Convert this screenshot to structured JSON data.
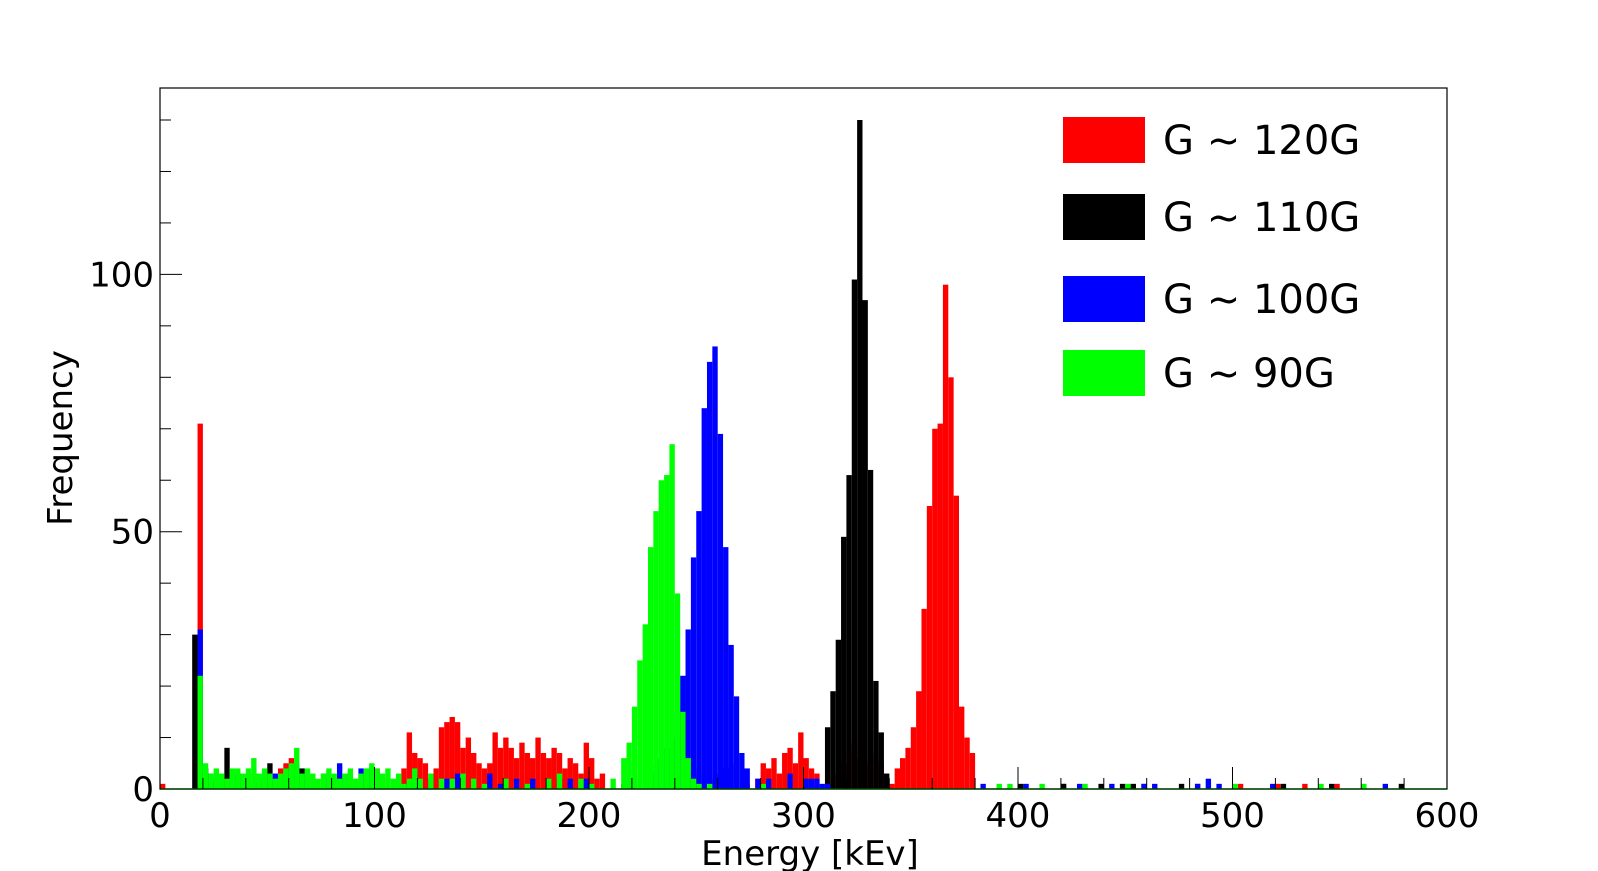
{
  "chart_data": {
    "type": "bar",
    "xlabel": "Energy [kEv]",
    "ylabel": "Frequency",
    "xlim": [
      0,
      600
    ],
    "ylim": [
      0,
      130
    ],
    "xticks": [
      0,
      100,
      200,
      300,
      400,
      500,
      600
    ],
    "yticks": [
      0,
      50,
      100
    ],
    "xtick_labels": [
      "0",
      "100",
      "200",
      "300",
      "400",
      "500",
      "600"
    ],
    "ytick_labels": [
      "0",
      "50",
      "100"
    ],
    "grid": false,
    "legend_position": "top-right",
    "bin_width": 2.5,
    "series": [
      {
        "name": "G ~ 120G",
        "color": "#ff0000",
        "points": [
          [
            0,
            1
          ],
          [
            17.5,
            71
          ],
          [
            20,
            4
          ],
          [
            27.5,
            2
          ],
          [
            40,
            3
          ],
          [
            45,
            2
          ],
          [
            55,
            4
          ],
          [
            57.5,
            5
          ],
          [
            60,
            6
          ],
          [
            62.5,
            5
          ],
          [
            95,
            3
          ],
          [
            100,
            4
          ],
          [
            102.5,
            2
          ],
          [
            112.5,
            4
          ],
          [
            115,
            11
          ],
          [
            117.5,
            7
          ],
          [
            120,
            6
          ],
          [
            122.5,
            5
          ],
          [
            125,
            2
          ],
          [
            127.5,
            4
          ],
          [
            130,
            12
          ],
          [
            132.5,
            13
          ],
          [
            135,
            14
          ],
          [
            137.5,
            13
          ],
          [
            140,
            8
          ],
          [
            142.5,
            10
          ],
          [
            145,
            7
          ],
          [
            147.5,
            5
          ],
          [
            150,
            4
          ],
          [
            152.5,
            5
          ],
          [
            155,
            11
          ],
          [
            157.5,
            8
          ],
          [
            160,
            10
          ],
          [
            162.5,
            8
          ],
          [
            165,
            6
          ],
          [
            167.5,
            9
          ],
          [
            170,
            7
          ],
          [
            172.5,
            6
          ],
          [
            175,
            10
          ],
          [
            177.5,
            7
          ],
          [
            180,
            6
          ],
          [
            182.5,
            8
          ],
          [
            185,
            7
          ],
          [
            187.5,
            4
          ],
          [
            190,
            6
          ],
          [
            192.5,
            5
          ],
          [
            195,
            3
          ],
          [
            197.5,
            9
          ],
          [
            200,
            6
          ],
          [
            202.5,
            2
          ],
          [
            205,
            3
          ],
          [
            247.5,
            4
          ],
          [
            250,
            3
          ],
          [
            255,
            2
          ],
          [
            272.5,
            1
          ],
          [
            277.5,
            2
          ],
          [
            280,
            5
          ],
          [
            282.5,
            4
          ],
          [
            285,
            6
          ],
          [
            287.5,
            3
          ],
          [
            290,
            7
          ],
          [
            292.5,
            8
          ],
          [
            295,
            5
          ],
          [
            297.5,
            11
          ],
          [
            300,
            6
          ],
          [
            302.5,
            4
          ],
          [
            305,
            3
          ],
          [
            315,
            3
          ],
          [
            317.5,
            5
          ],
          [
            320,
            7
          ],
          [
            322.5,
            9
          ],
          [
            325,
            6
          ],
          [
            327.5,
            5
          ],
          [
            330,
            4
          ],
          [
            332.5,
            7
          ],
          [
            335,
            5
          ],
          [
            337.5,
            3
          ],
          [
            340,
            1
          ],
          [
            342.5,
            4
          ],
          [
            345,
            6
          ],
          [
            347.5,
            8
          ],
          [
            350,
            12
          ],
          [
            352.5,
            19
          ],
          [
            355,
            35
          ],
          [
            357.5,
            55
          ],
          [
            360,
            70
          ],
          [
            362.5,
            71
          ],
          [
            365,
            98
          ],
          [
            367.5,
            80
          ],
          [
            370,
            57
          ],
          [
            372.5,
            16
          ],
          [
            375,
            10
          ],
          [
            377.5,
            7
          ],
          [
            420,
            1
          ],
          [
            457.5,
            1
          ],
          [
            482.5,
            1
          ],
          [
            502.5,
            1
          ],
          [
            520,
            1
          ],
          [
            532.5,
            1
          ],
          [
            547.5,
            1
          ]
        ]
      },
      {
        "name": "G ~ 110G",
        "color": "#000000",
        "points": [
          [
            15,
            30
          ],
          [
            17.5,
            4
          ],
          [
            22.5,
            3
          ],
          [
            30,
            8
          ],
          [
            37.5,
            2
          ],
          [
            50,
            5
          ],
          [
            65,
            4
          ],
          [
            75,
            3
          ],
          [
            115,
            1
          ],
          [
            185,
            2
          ],
          [
            215,
            1
          ],
          [
            260,
            3
          ],
          [
            262.5,
            4
          ],
          [
            265,
            5
          ],
          [
            310,
            12
          ],
          [
            312.5,
            19
          ],
          [
            315,
            29
          ],
          [
            317.5,
            49
          ],
          [
            320,
            61
          ],
          [
            322.5,
            99
          ],
          [
            325,
            130
          ],
          [
            327.5,
            95
          ],
          [
            330,
            62
          ],
          [
            332.5,
            21
          ],
          [
            335,
            11
          ],
          [
            337.5,
            3
          ],
          [
            400,
            1
          ],
          [
            420,
            1
          ],
          [
            437.5,
            1
          ],
          [
            447.5,
            1
          ],
          [
            452.5,
            1
          ],
          [
            475,
            1
          ],
          [
            522.5,
            1
          ],
          [
            545,
            1
          ],
          [
            577.5,
            1
          ]
        ]
      },
      {
        "name": "G ~ 100G",
        "color": "#0000ff",
        "points": [
          [
            17.5,
            31
          ],
          [
            20,
            4
          ],
          [
            25,
            2
          ],
          [
            35,
            3
          ],
          [
            47.5,
            3
          ],
          [
            52.5,
            3
          ],
          [
            60,
            4
          ],
          [
            62.5,
            5
          ],
          [
            67.5,
            3
          ],
          [
            77.5,
            2
          ],
          [
            82.5,
            5
          ],
          [
            87.5,
            3
          ],
          [
            92.5,
            4
          ],
          [
            95,
            3
          ],
          [
            97.5,
            4
          ],
          [
            117.5,
            3
          ],
          [
            125,
            2
          ],
          [
            132.5,
            2
          ],
          [
            137.5,
            3
          ],
          [
            152.5,
            3
          ],
          [
            157.5,
            1
          ],
          [
            165,
            2
          ],
          [
            172.5,
            2
          ],
          [
            190,
            2
          ],
          [
            197.5,
            2
          ],
          [
            227.5,
            3
          ],
          [
            230,
            5
          ],
          [
            232.5,
            6
          ],
          [
            235,
            8
          ],
          [
            237.5,
            10
          ],
          [
            240,
            15
          ],
          [
            242.5,
            22
          ],
          [
            245,
            31
          ],
          [
            247.5,
            45
          ],
          [
            250,
            54
          ],
          [
            252.5,
            74
          ],
          [
            255,
            83
          ],
          [
            257.5,
            86
          ],
          [
            260,
            69
          ],
          [
            262.5,
            47
          ],
          [
            265,
            28
          ],
          [
            267.5,
            18
          ],
          [
            270,
            7
          ],
          [
            272.5,
            4
          ],
          [
            277.5,
            2
          ],
          [
            282.5,
            2
          ],
          [
            292.5,
            3
          ],
          [
            300,
            2
          ],
          [
            302.5,
            2
          ],
          [
            305,
            2
          ],
          [
            307.5,
            1
          ],
          [
            310,
            1
          ],
          [
            382.5,
            1
          ],
          [
            402.5,
            1
          ],
          [
            427.5,
            1
          ],
          [
            442.5,
            1
          ],
          [
            457.5,
            1
          ],
          [
            462.5,
            1
          ],
          [
            482.5,
            1
          ],
          [
            487.5,
            2
          ],
          [
            492.5,
            1
          ],
          [
            517.5,
            1
          ],
          [
            570,
            1
          ]
        ]
      },
      {
        "name": "G ~ 90G",
        "color": "#00ff00",
        "points": [
          [
            17.5,
            22
          ],
          [
            20,
            5
          ],
          [
            22.5,
            3
          ],
          [
            25,
            4
          ],
          [
            27.5,
            3
          ],
          [
            30,
            2
          ],
          [
            32.5,
            4
          ],
          [
            35,
            4
          ],
          [
            37.5,
            3
          ],
          [
            40,
            4
          ],
          [
            42.5,
            6
          ],
          [
            45,
            3
          ],
          [
            47.5,
            4
          ],
          [
            50,
            3
          ],
          [
            52.5,
            2
          ],
          [
            55,
            3
          ],
          [
            57.5,
            4
          ],
          [
            60,
            5
          ],
          [
            62.5,
            8
          ],
          [
            65,
            3
          ],
          [
            67.5,
            4
          ],
          [
            70,
            3
          ],
          [
            72.5,
            2
          ],
          [
            75,
            3
          ],
          [
            77.5,
            4
          ],
          [
            80,
            3
          ],
          [
            82.5,
            2
          ],
          [
            85,
            3
          ],
          [
            87.5,
            4
          ],
          [
            90,
            2
          ],
          [
            92.5,
            3
          ],
          [
            95,
            4
          ],
          [
            97.5,
            5
          ],
          [
            100,
            4
          ],
          [
            102.5,
            3
          ],
          [
            105,
            4
          ],
          [
            107.5,
            2
          ],
          [
            110,
            3
          ],
          [
            112.5,
            1
          ],
          [
            115,
            2
          ],
          [
            117.5,
            4
          ],
          [
            120,
            2
          ],
          [
            125,
            3
          ],
          [
            130,
            2
          ],
          [
            135,
            2
          ],
          [
            140,
            3
          ],
          [
            145,
            2
          ],
          [
            150,
            1
          ],
          [
            160,
            2
          ],
          [
            170,
            1
          ],
          [
            180,
            2
          ],
          [
            185,
            3
          ],
          [
            195,
            2
          ],
          [
            200,
            1
          ],
          [
            210,
            2
          ],
          [
            215,
            6
          ],
          [
            217.5,
            9
          ],
          [
            220,
            16
          ],
          [
            222.5,
            25
          ],
          [
            225,
            32
          ],
          [
            227.5,
            47
          ],
          [
            230,
            54
          ],
          [
            232.5,
            60
          ],
          [
            235,
            61
          ],
          [
            237.5,
            67
          ],
          [
            240,
            38
          ],
          [
            242.5,
            15
          ],
          [
            245,
            6
          ],
          [
            247.5,
            2
          ],
          [
            250,
            1
          ],
          [
            255,
            1
          ],
          [
            280,
            1
          ],
          [
            390,
            1
          ],
          [
            395,
            1
          ],
          [
            410,
            1
          ],
          [
            430,
            1
          ],
          [
            450,
            1
          ],
          [
            500,
            1
          ],
          [
            540,
            1
          ],
          [
            560,
            1
          ]
        ]
      }
    ]
  }
}
